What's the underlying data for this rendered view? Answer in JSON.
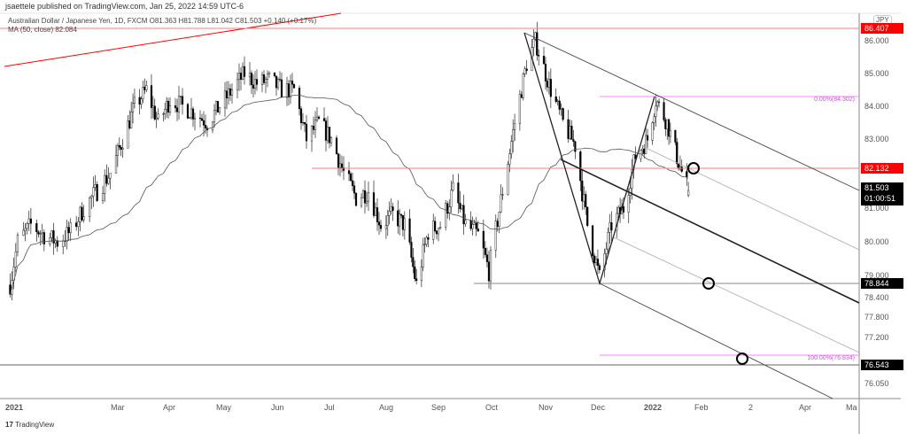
{
  "header": {
    "published": "jsaettele published on TradingView.com, Jan 25, 2022 14:59 UTC-6",
    "symbol_line": "Australian Dollar / Japanese Yen, 1D, FXCM  O81.363  H81.788  L81.042  C81.503  +0.140 (+0.17%)",
    "ma_line": "MA (50, close)  82.084"
  },
  "footer": {
    "brand": "TradingView"
  },
  "chart_data": {
    "type": "candlestick",
    "title": "Australian Dollar / Japanese Yen, 1D, FXCM",
    "currency": "JPY",
    "close_anchors": [
      [
        "2021-01-04",
        78.8
      ],
      [
        "2021-01-08",
        80.0
      ],
      [
        "2021-01-15",
        80.5
      ],
      [
        "2021-01-22",
        80.2
      ],
      [
        "2021-01-29",
        80.0
      ],
      [
        "2021-02-05",
        80.3
      ],
      [
        "2021-02-12",
        81.0
      ],
      [
        "2021-02-19",
        81.5
      ],
      [
        "2021-02-26",
        82.0
      ],
      [
        "2021-03-05",
        83.0
      ],
      [
        "2021-03-12",
        84.0
      ],
      [
        "2021-03-19",
        84.5
      ],
      [
        "2021-03-26",
        83.5
      ],
      [
        "2021-04-02",
        84.2
      ],
      [
        "2021-04-09",
        84.0
      ],
      [
        "2021-04-16",
        83.8
      ],
      [
        "2021-04-23",
        83.5
      ],
      [
        "2021-04-30",
        84.0
      ],
      [
        "2021-05-07",
        84.5
      ],
      [
        "2021-05-14",
        85.0
      ],
      [
        "2021-05-21",
        84.7
      ],
      [
        "2021-05-28",
        84.8
      ],
      [
        "2021-06-04",
        84.5
      ],
      [
        "2021-06-11",
        84.5
      ],
      [
        "2021-06-18",
        83.0
      ],
      [
        "2021-06-25",
        83.5
      ],
      [
        "2021-07-02",
        83.0
      ],
      [
        "2021-07-09",
        82.0
      ],
      [
        "2021-07-16",
        81.3
      ],
      [
        "2021-07-23",
        81.5
      ],
      [
        "2021-07-30",
        80.5
      ],
      [
        "2021-08-06",
        80.8
      ],
      [
        "2021-08-13",
        80.5
      ],
      [
        "2021-08-20",
        78.8
      ],
      [
        "2021-08-27",
        80.3
      ],
      [
        "2021-09-03",
        80.5
      ],
      [
        "2021-09-10",
        81.5
      ],
      [
        "2021-09-17",
        80.5
      ],
      [
        "2021-09-24",
        80.2
      ],
      [
        "2021-09-30",
        79.2
      ],
      [
        "2021-10-08",
        81.5
      ],
      [
        "2021-10-15",
        83.5
      ],
      [
        "2021-10-22",
        85.3
      ],
      [
        "2021-10-27",
        86.0
      ],
      [
        "2021-11-05",
        84.5
      ],
      [
        "2021-11-12",
        83.5
      ],
      [
        "2021-11-19",
        82.8
      ],
      [
        "2021-11-26",
        80.5
      ],
      [
        "2021-12-03",
        79.0
      ],
      [
        "2021-12-10",
        80.5
      ],
      [
        "2021-12-17",
        81.0
      ],
      [
        "2021-12-24",
        82.5
      ],
      [
        "2021-12-31",
        83.0
      ],
      [
        "2022-01-05",
        84.2
      ],
      [
        "2022-01-12",
        83.5
      ],
      [
        "2022-01-19",
        82.3
      ],
      [
        "2022-01-25",
        81.503
      ]
    ],
    "last_bar": {
      "open": 81.363,
      "high": 81.788,
      "low": 81.042,
      "close": 81.503,
      "change": "+0.140",
      "change_pct": "+0.17%"
    },
    "ma": {
      "period": 50,
      "source": "close",
      "value": 82.084
    },
    "y_ticks": [
      "86.000",
      "85.000",
      "84.000",
      "83.000",
      "81.000",
      "80.000",
      "79.000",
      "78.400",
      "77.800",
      "77.200",
      "76.050"
    ],
    "x_ticks": [
      "2021",
      "Mar",
      "Apr",
      "May",
      "Jun",
      "Jul",
      "Aug",
      "Sep",
      "Oct",
      "Nov",
      "Dec",
      "2022",
      "Feb",
      "2",
      "Apr",
      "Ma"
    ],
    "price_labels": [
      {
        "value": "86.407",
        "color": "#ff0000"
      },
      {
        "value": "82.132",
        "color": "#ff0000"
      },
      {
        "value": "81.503",
        "sub": "01:00:51",
        "color": "#000000"
      },
      {
        "value": "78.844",
        "color": "#000000"
      },
      {
        "value": "76.543",
        "color": "#000000"
      }
    ],
    "fib_labels": [
      "0.00%(84.302)",
      "100.00%(76.834)"
    ],
    "colors": {
      "up": "#ffffff",
      "down": "#000000",
      "ma": "#555555",
      "level": "#ff0000",
      "fib": "#e040fb"
    }
  }
}
